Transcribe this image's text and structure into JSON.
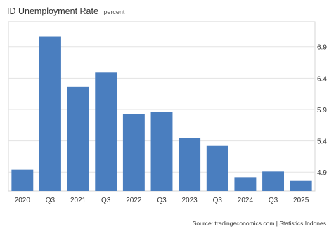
{
  "chart_data": {
    "type": "bar",
    "title": "ID Unemployment Rate",
    "subtitle": "percent",
    "xlabel": "",
    "ylabel": "",
    "categories": [
      "2020",
      "Q3",
      "2021",
      "Q3",
      "2022",
      "Q3",
      "2023",
      "Q3",
      "2024",
      "Q3",
      "2025"
    ],
    "values": [
      4.94,
      7.07,
      6.26,
      6.49,
      5.83,
      5.86,
      5.45,
      5.32,
      4.82,
      4.91,
      4.76
    ],
    "ylim": [
      4.6,
      7.3
    ],
    "yticks": [
      4.9,
      5.4,
      5.9,
      6.4,
      6.9
    ],
    "ytick_labels": [
      "4.9",
      "5.4",
      "5.9",
      "6.4",
      "6.9"
    ],
    "grid": true,
    "bar_color": "#4a7ebf",
    "source": "Source: tradingeconomics.com | Statistics Indones"
  }
}
